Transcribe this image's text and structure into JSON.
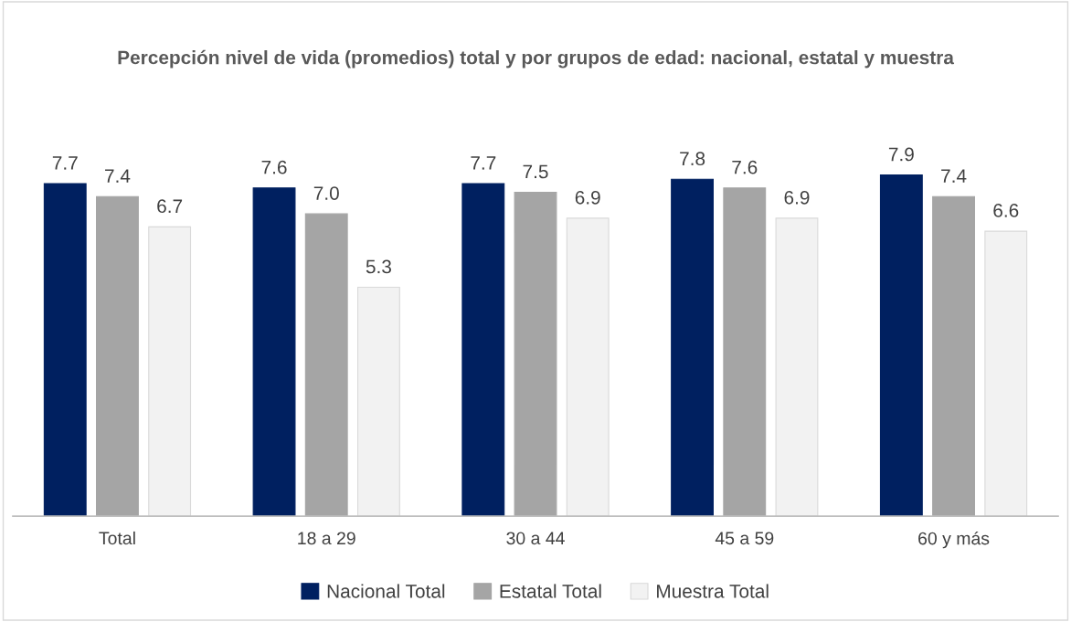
{
  "chart_data": {
    "type": "bar",
    "title": "Percepción nivel de vida (promedios) total y por grupos de edad: nacional, estatal y muestra",
    "categories": [
      "Total",
      "18 a 29",
      "30 a 44",
      "45 a 59",
      "60 y más"
    ],
    "series": [
      {
        "name": "Nacional Total",
        "color": "#002060",
        "values": [
          7.7,
          7.6,
          7.7,
          7.8,
          7.9
        ],
        "value_labels": [
          "7.7",
          "7.6",
          "7.7",
          "7.8",
          "7.9"
        ]
      },
      {
        "name": "Estatal Total",
        "color": "#a5a5a5",
        "values": [
          7.4,
          7.0,
          7.5,
          7.6,
          7.4
        ],
        "value_labels": [
          "7.4",
          "7.0",
          "7.5",
          "7.6",
          "7.4"
        ]
      },
      {
        "name": "Muestra Total",
        "color": "#f2f2f2",
        "values": [
          6.7,
          5.3,
          6.9,
          6.9,
          6.6
        ],
        "value_labels": [
          "6.7",
          "5.3",
          "6.9",
          "6.9",
          "6.6"
        ]
      }
    ],
    "legend": "bottom",
    "grid": false
  }
}
